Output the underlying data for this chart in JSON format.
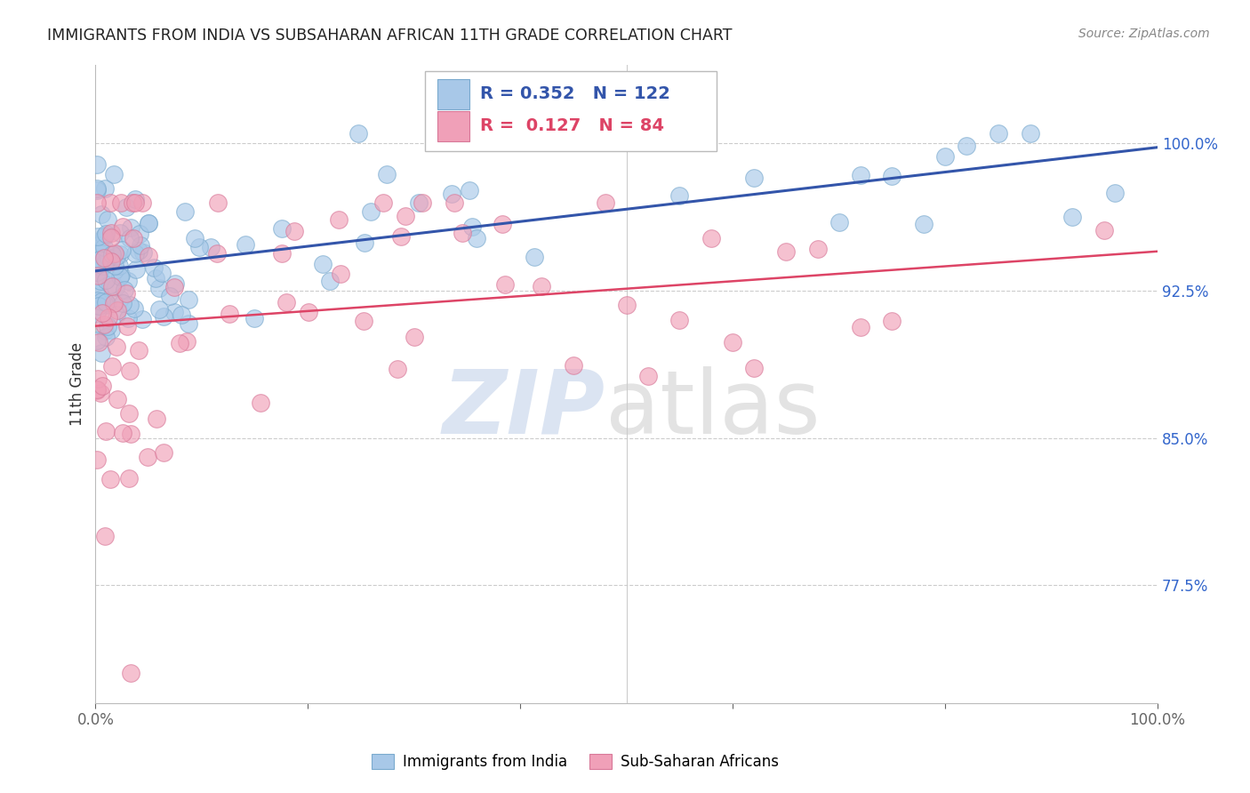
{
  "title": "IMMIGRANTS FROM INDIA VS SUBSAHARAN AFRICAN 11TH GRADE CORRELATION CHART",
  "source": "Source: ZipAtlas.com",
  "ylabel": "11th Grade",
  "xlim": [
    0.0,
    1.0
  ],
  "ylim": [
    0.715,
    1.04
  ],
  "yticks": [
    0.775,
    0.85,
    0.925,
    1.0
  ],
  "ytick_labels": [
    "77.5%",
    "85.0%",
    "92.5%",
    "100.0%"
  ],
  "xticks": [
    0.0,
    0.2,
    0.4,
    0.6,
    0.8,
    1.0
  ],
  "xtick_labels": [
    "0.0%",
    "",
    "",
    "",
    "",
    "100.0%"
  ],
  "blue_R": 0.352,
  "blue_N": 122,
  "pink_R": 0.127,
  "pink_N": 84,
  "blue_color": "#A8C8E8",
  "pink_color": "#F0A0B8",
  "blue_edge_color": "#7AAACE",
  "pink_edge_color": "#D87898",
  "blue_line_color": "#3355AA",
  "pink_line_color": "#DD4466",
  "legend_label_blue": "Immigrants from India",
  "legend_label_pink": "Sub-Saharan Africans",
  "background_color": "#ffffff",
  "blue_trend_x0": 0.0,
  "blue_trend_y0": 0.935,
  "blue_trend_x1": 1.0,
  "blue_trend_y1": 0.998,
  "pink_trend_x0": 0.0,
  "pink_trend_y0": 0.907,
  "pink_trend_x1": 1.0,
  "pink_trend_y1": 0.945
}
